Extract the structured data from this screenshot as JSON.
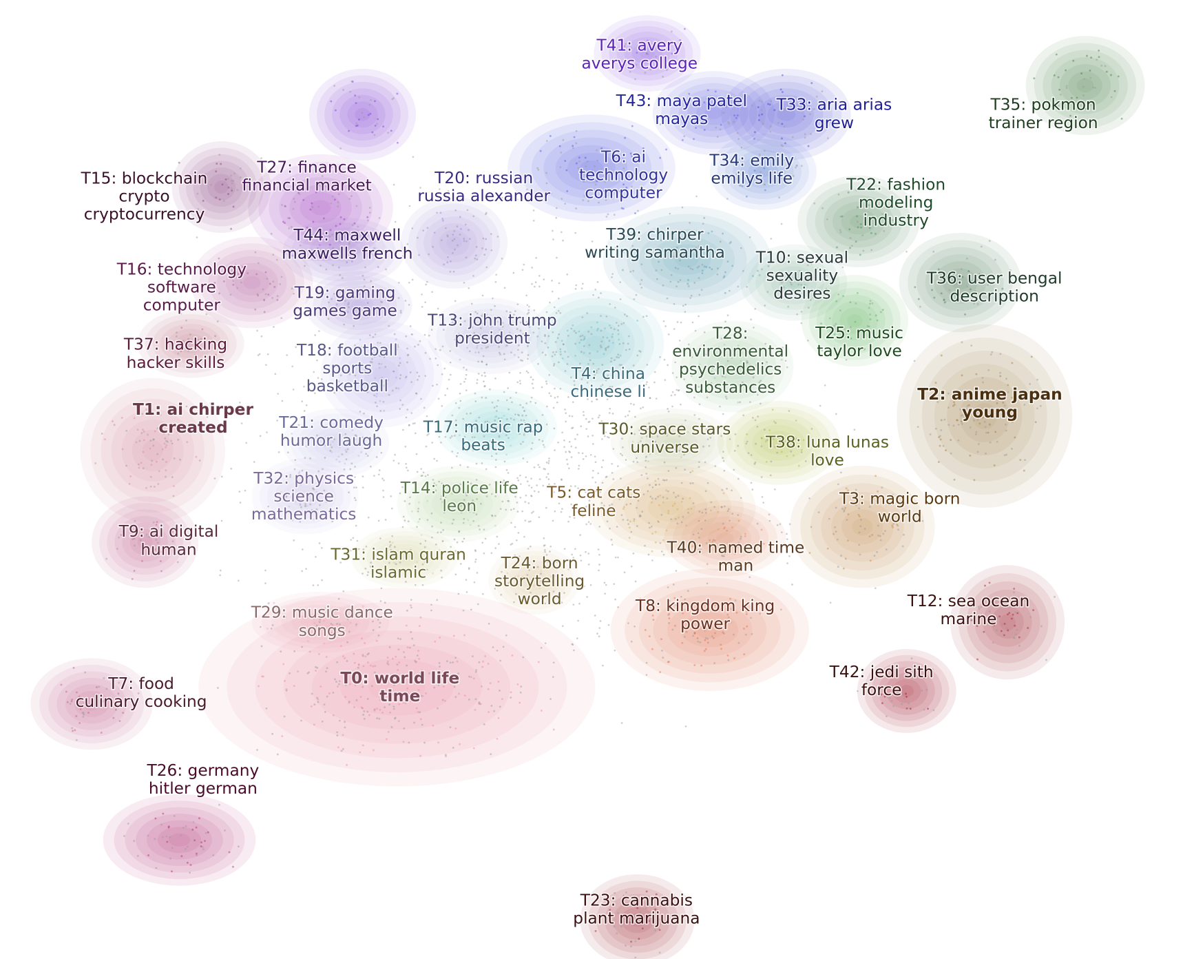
{
  "topics": [
    {
      "lines": [
        "T41: avery",
        "averys college"
      ]
    },
    {
      "lines": [
        "T43: maya patel",
        "mayas"
      ]
    },
    {
      "lines": [
        "T33: aria arias",
        "grew"
      ]
    },
    {
      "lines": [
        "T35: pokmon",
        "trainer region"
      ]
    },
    {
      "lines": [
        "T6: ai",
        "technology",
        "computer"
      ]
    },
    {
      "lines": [
        "T34: emily",
        "emilys life"
      ]
    },
    {
      "lines": [
        "T22: fashion",
        "modeling",
        "industry"
      ]
    },
    {
      "lines": [
        "T20: russian",
        "russia alexander"
      ]
    },
    {
      "lines": [
        "T27: finance",
        "financial market"
      ]
    },
    {
      "lines": [
        "T15: blockchain",
        "crypto",
        "cryptocurrency"
      ]
    },
    {
      "lines": [
        "T44: maxwell",
        "maxwells french"
      ]
    },
    {
      "lines": [
        "T39: chirper",
        "writing samantha"
      ]
    },
    {
      "lines": [
        "T10: sexual",
        "sexuality",
        "desires"
      ]
    },
    {
      "lines": [
        "T36: user bengal",
        "description"
      ]
    },
    {
      "lines": [
        "T16: technology",
        "software",
        "computer"
      ]
    },
    {
      "lines": [
        "T19: gaming",
        "games game"
      ]
    },
    {
      "lines": [
        "T13: john trump",
        "president"
      ]
    },
    {
      "lines": [
        "T37: hacking",
        "hacker skills"
      ]
    },
    {
      "lines": [
        "T18: football",
        "sports",
        "basketball"
      ]
    },
    {
      "lines": [
        "T28:",
        "environmental",
        "psychedelics",
        "substances"
      ]
    },
    {
      "lines": [
        "T25: music",
        "taylor love"
      ]
    },
    {
      "lines": [
        "T4: china",
        "chinese li"
      ]
    },
    {
      "lines": [
        "T2: anime japan",
        "young"
      ]
    },
    {
      "lines": [
        "T1: ai chirper",
        "created"
      ]
    },
    {
      "lines": [
        "T21: comedy",
        "humor laugh"
      ]
    },
    {
      "lines": [
        "T17: music rap",
        "beats"
      ]
    },
    {
      "lines": [
        "T30: space stars",
        "universe"
      ]
    },
    {
      "lines": [
        "T38: luna lunas",
        "love"
      ]
    },
    {
      "lines": [
        "T32: physics",
        "science",
        "mathematics"
      ]
    },
    {
      "lines": [
        "T14: police life",
        "leon"
      ]
    },
    {
      "lines": [
        "T5: cat cats",
        "feline"
      ]
    },
    {
      "lines": [
        "T3: magic born",
        "world"
      ]
    },
    {
      "lines": [
        "T9: ai digital",
        "human"
      ]
    },
    {
      "lines": [
        "T31: islam quran",
        "islamic"
      ]
    },
    {
      "lines": [
        "T24: born",
        "storytelling",
        "world"
      ]
    },
    {
      "lines": [
        "T40: named time",
        "man"
      ]
    },
    {
      "lines": [
        "T29: music dance",
        "songs"
      ]
    },
    {
      "lines": [
        "T8: kingdom king",
        "power"
      ]
    },
    {
      "lines": [
        "T12: sea ocean",
        "marine"
      ]
    },
    {
      "lines": [
        "T42: jedi sith",
        "force"
      ]
    },
    {
      "lines": [
        "T0: world life",
        "time"
      ]
    },
    {
      "lines": [
        "T7: food",
        "culinary cooking"
      ]
    },
    {
      "lines": [
        "T26: germany",
        "hitler german"
      ]
    },
    {
      "lines": [
        "T23: cannabis",
        "plant marijuana"
      ]
    }
  ]
}
